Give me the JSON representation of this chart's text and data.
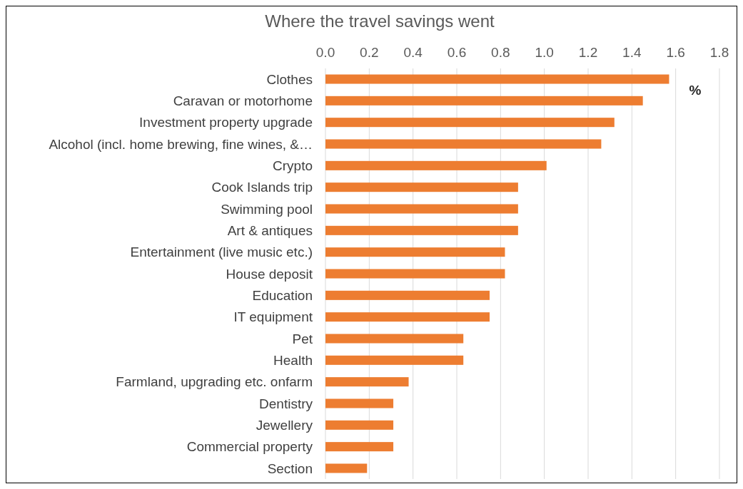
{
  "chart_data": {
    "type": "bar",
    "orientation": "horizontal",
    "title": "Where the travel savings went",
    "categories": [
      "Clothes",
      "Caravan or motorhome",
      "Investment property upgrade",
      "Alcohol (incl. home brewing, fine wines, &…",
      "Crypto",
      "Cook Islands trip",
      "Swimming pool",
      "Art & antiques",
      "Entertainment (live music etc.)",
      "House deposit",
      "Education",
      "IT equipment",
      "Pet",
      "Health",
      "Farmland, upgrading etc. onfarm",
      "Dentistry",
      "Jewellery",
      "Commercial property",
      "Section"
    ],
    "values": [
      1.57,
      1.45,
      1.32,
      1.26,
      1.01,
      0.88,
      0.88,
      0.88,
      0.82,
      0.82,
      0.75,
      0.75,
      0.63,
      0.63,
      0.38,
      0.31,
      0.31,
      0.31,
      0.19
    ],
    "color": "#ed7d31",
    "xlim": [
      0,
      1.8
    ],
    "xticks": [
      {
        "value": 0,
        "label": "0.0"
      },
      0.2,
      0.4,
      0.6,
      0.8,
      {
        "value": 1,
        "label": "1.0"
      },
      1.2,
      1.4,
      1.6,
      1.8
    ],
    "grid": "x",
    "annotations": [
      "%"
    ]
  }
}
